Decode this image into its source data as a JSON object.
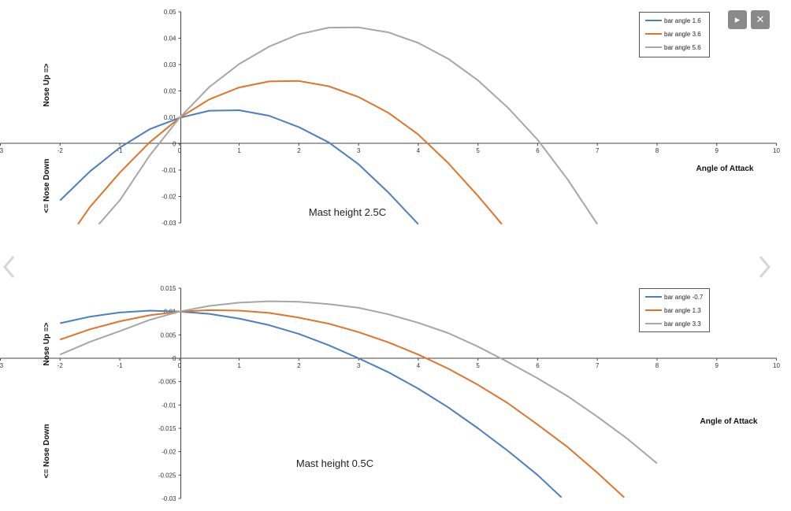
{
  "controls": {
    "play_icon": "play-icon",
    "close_icon": "close-icon",
    "prev_icon": "chevron-left-icon",
    "next_icon": "chevron-right-icon"
  },
  "colors": {
    "blue": "#4a7fc1",
    "orange": "#e0742a",
    "gray": "#a6a6a6"
  },
  "chart_data": [
    {
      "type": "line",
      "xlabel": "Angle of Attack",
      "ylabel_up": "Nose Up =>",
      "ylabel_down": "<= Nose Down",
      "annotation": "Mast height 2.5C",
      "xlim": [
        -3,
        10
      ],
      "ylim": [
        -0.03,
        0.05
      ],
      "xticks": [
        "-3",
        "-2",
        "-1",
        "0",
        "1",
        "2",
        "3",
        "4",
        "5",
        "6",
        "7",
        "8",
        "9",
        "10"
      ],
      "yticks": [
        "0.05",
        "0.04",
        "0.03",
        "0.02",
        "0.01",
        "0",
        "-0.01",
        "-0.02",
        "-0.03"
      ],
      "legend_position": "top-right",
      "series": [
        {
          "name": "bar angle 1.6",
          "color": "#4a7fc1",
          "x": [
            -2,
            -1.5,
            -1,
            -0.5,
            0,
            0.5,
            1,
            1.5,
            2,
            2.5,
            3,
            3.5,
            4
          ],
          "y": [
            -0.0215,
            -0.0105,
            -0.0015,
            0.0055,
            0.0098,
            0.0125,
            0.0127,
            0.0106,
            0.0063,
            0.0005,
            -0.0078,
            -0.0185,
            -0.0305
          ]
        },
        {
          "name": "bar angle 3.6",
          "color": "#e0742a",
          "x": [
            -1.7,
            -1.5,
            -1,
            -0.5,
            0,
            0.5,
            1,
            1.5,
            2,
            2.5,
            3,
            3.5,
            4,
            4.5,
            5,
            5.4
          ],
          "y": [
            -0.0305,
            -0.024,
            -0.011,
            0.0005,
            0.0098,
            0.0168,
            0.0213,
            0.0236,
            0.0238,
            0.0218,
            0.0177,
            0.0117,
            0.0035,
            -0.0073,
            -0.0198,
            -0.0305
          ]
        },
        {
          "name": "bar angle 5.6",
          "color": "#a6a6a6",
          "x": [
            -1.35,
            -1,
            -0.5,
            0,
            0.5,
            1,
            1.5,
            2,
            2.5,
            3,
            3.5,
            4,
            4.5,
            5,
            5.5,
            6,
            6.5,
            7
          ],
          "y": [
            -0.0305,
            -0.0215,
            -0.0045,
            0.0098,
            0.0215,
            0.0302,
            0.0368,
            0.0415,
            0.044,
            0.0441,
            0.0422,
            0.0382,
            0.0322,
            0.024,
            0.0137,
            0.0015,
            -0.0135,
            -0.0305
          ]
        }
      ]
    },
    {
      "type": "line",
      "xlabel": "Angle of Attack",
      "ylabel_up": "Nose Up =>",
      "ylabel_down": "<= Nose Down",
      "annotation": "Mast height 0.5C",
      "xlim": [
        -3,
        10
      ],
      "ylim": [
        -0.03,
        0.015
      ],
      "xticks": [
        "-3",
        "-2",
        "-1",
        "0",
        "1",
        "2",
        "3",
        "4",
        "5",
        "6",
        "7",
        "8",
        "9",
        "10"
      ],
      "yticks": [
        "0.015",
        "0.01",
        "0.005",
        "0",
        "-0.005",
        "-0.01",
        "-0.015",
        "-0.02",
        "-0.025",
        "-0.03"
      ],
      "legend_position": "top-right",
      "series": [
        {
          "name": "bar angle -0.7",
          "color": "#4a7fc1",
          "x": [
            -2,
            -1.5,
            -1,
            -0.5,
            0,
            0.5,
            1,
            1.5,
            2,
            2.5,
            3,
            3.5,
            4,
            4.5,
            5,
            5.5,
            6,
            6.4
          ],
          "y": [
            0.0075,
            0.0089,
            0.0098,
            0.0102,
            0.01,
            0.0095,
            0.0085,
            0.0071,
            0.0052,
            0.0028,
            0.0,
            -0.003,
            -0.0065,
            -0.0105,
            -0.015,
            -0.0198,
            -0.025,
            -0.0298
          ]
        },
        {
          "name": "bar angle 1.3",
          "color": "#e0742a",
          "x": [
            -2,
            -1.5,
            -1,
            -0.5,
            0,
            0.5,
            1,
            1.5,
            2,
            2.5,
            3,
            3.5,
            4,
            4.5,
            5,
            5.5,
            6,
            6.5,
            7,
            7.45
          ],
          "y": [
            0.004,
            0.0062,
            0.0079,
            0.0092,
            0.01,
            0.0103,
            0.0102,
            0.0097,
            0.0087,
            0.0074,
            0.0056,
            0.0034,
            0.0008,
            -0.0022,
            -0.0057,
            -0.0096,
            -0.0142,
            -0.019,
            -0.0245,
            -0.0298
          ]
        },
        {
          "name": "bar angle 3.3",
          "color": "#a6a6a6",
          "x": [
            -2,
            -1.5,
            -1,
            -0.5,
            0,
            0.5,
            1,
            1.5,
            2,
            2.5,
            3,
            3.5,
            4,
            4.5,
            5,
            5.5,
            6,
            6.5,
            7,
            7.5,
            8
          ],
          "y": [
            0.0008,
            0.0035,
            0.0058,
            0.0082,
            0.01,
            0.0112,
            0.0119,
            0.0122,
            0.0121,
            0.0116,
            0.0108,
            0.0094,
            0.0076,
            0.0054,
            0.0025,
            -0.0008,
            -0.0043,
            -0.0081,
            -0.0125,
            -0.0172,
            -0.0225
          ]
        }
      ]
    }
  ]
}
